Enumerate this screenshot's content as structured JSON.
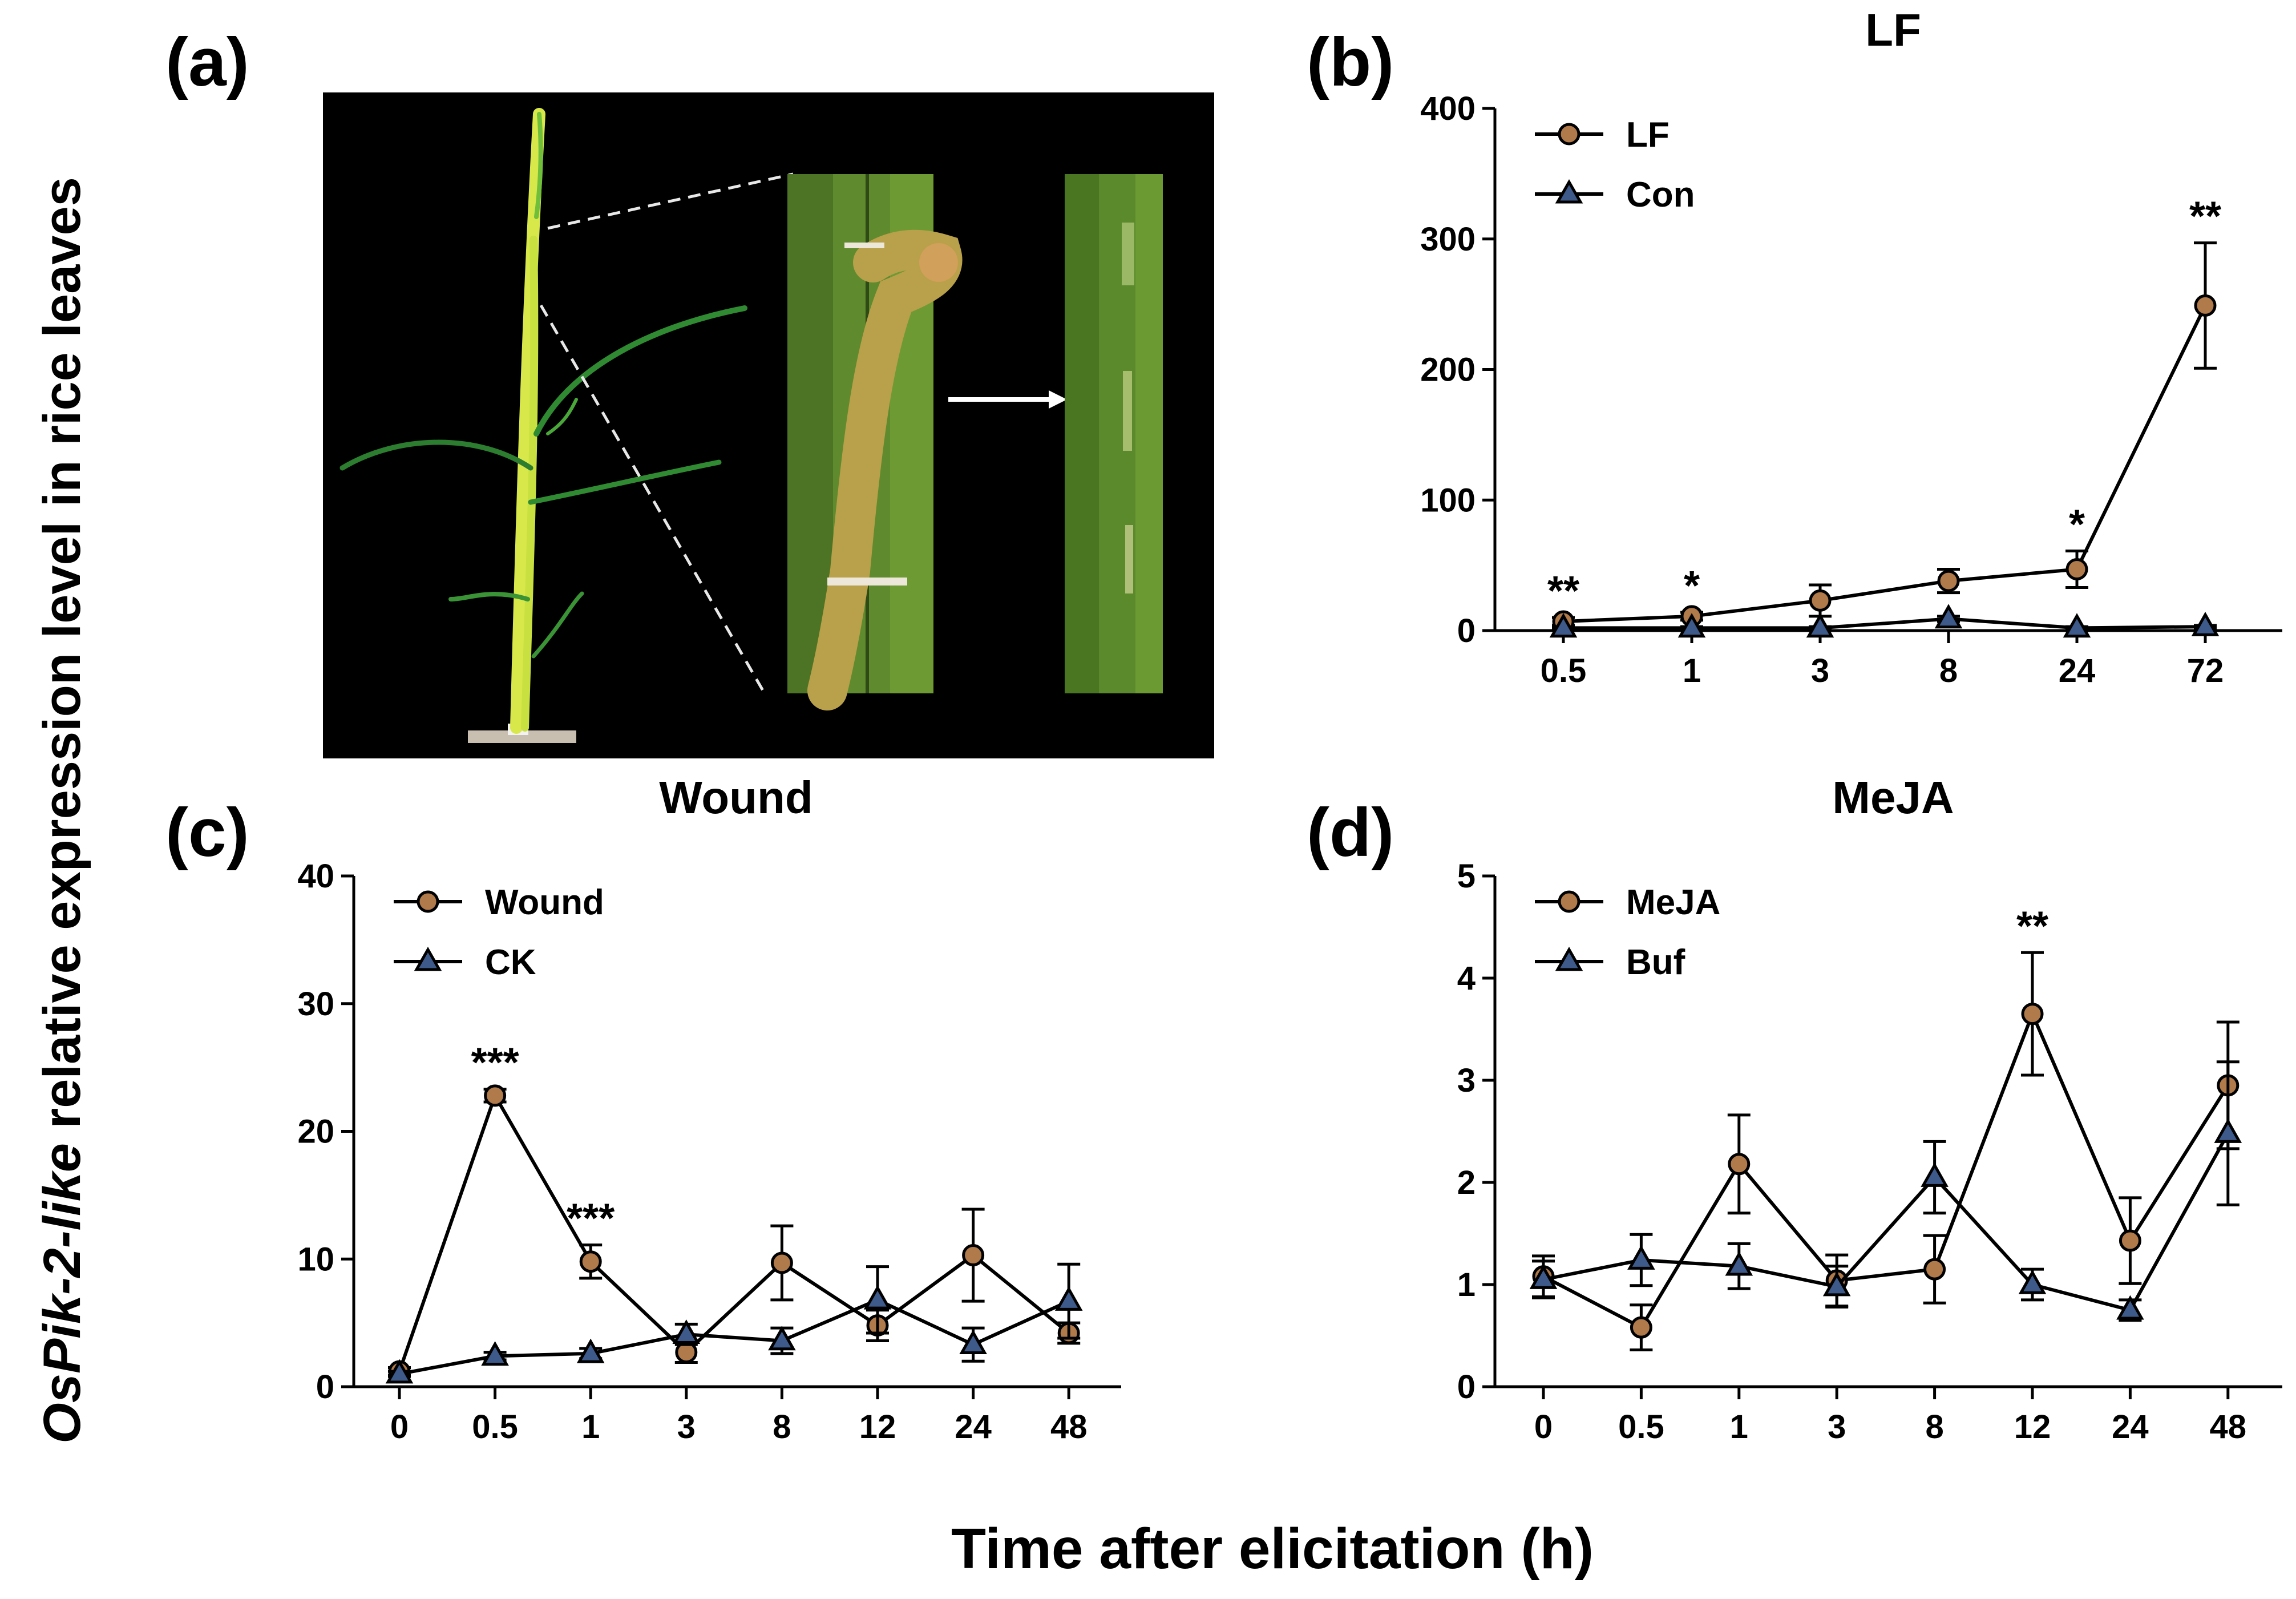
{
  "panels": {
    "a": "(a)",
    "b": "(b)",
    "c": "(c)",
    "d": "(d)"
  },
  "y_title": {
    "italic_part": "OsPik-2-like",
    "rest": " relative expression level in rice leaves"
  },
  "x_title": "Time after elicitation (h)",
  "colors": {
    "treatment_marker": "#b07a4a",
    "control_marker": "#3d5a8a",
    "line": "#000000"
  },
  "chart_data": [
    {
      "id": "b",
      "type": "line",
      "title": "LF",
      "categories": [
        "0.5",
        "1",
        "3",
        "8",
        "24",
        "72"
      ],
      "ylim": [
        0,
        400
      ],
      "yticks": [
        0,
        100,
        200,
        300,
        400
      ],
      "legend_position": "top-left",
      "series": [
        {
          "name": "LF",
          "marker": "circle",
          "values": [
            7,
            11,
            23,
            38,
            47,
            249
          ],
          "errors": [
            3,
            3,
            12,
            9,
            14,
            48
          ],
          "sig": [
            "**",
            "*",
            "",
            "",
            "*",
            "**"
          ]
        },
        {
          "name": "Con",
          "marker": "triangle",
          "values": [
            2,
            2,
            2,
            9,
            2,
            3
          ],
          "errors": [
            1,
            1,
            1,
            2,
            1,
            1
          ]
        }
      ]
    },
    {
      "id": "c",
      "type": "line",
      "title": "Wound",
      "categories": [
        "0",
        "0.5",
        "1",
        "3",
        "8",
        "12",
        "24",
        "48"
      ],
      "ylim": [
        0,
        40
      ],
      "yticks": [
        0,
        10,
        20,
        30,
        40
      ],
      "legend_position": "top-left",
      "series": [
        {
          "name": "Wound",
          "marker": "circle",
          "values": [
            1.2,
            22.8,
            9.8,
            2.7,
            9.7,
            4.8,
            10.3,
            4.2
          ],
          "errors": [
            0.3,
            0.5,
            1.3,
            0.8,
            2.9,
            1.2,
            3.6,
            0.8
          ],
          "sig": [
            "",
            "***",
            "***",
            "",
            "",
            "",
            "",
            ""
          ]
        },
        {
          "name": "CK",
          "marker": "triangle",
          "values": [
            1.0,
            2.4,
            2.6,
            4.1,
            3.6,
            6.8,
            3.3,
            6.7
          ],
          "errors": [
            0.2,
            0.3,
            0.4,
            0.8,
            1.0,
            2.6,
            1.3,
            2.9
          ]
        }
      ]
    },
    {
      "id": "d",
      "type": "line",
      "title": "MeJA",
      "categories": [
        "0",
        "0.5",
        "1",
        "3",
        "8",
        "12",
        "24",
        "48"
      ],
      "ylim": [
        0,
        5
      ],
      "yticks": [
        0,
        1,
        2,
        3,
        4,
        5
      ],
      "legend_position": "top-left",
      "series": [
        {
          "name": "MeJA",
          "marker": "circle",
          "values": [
            1.08,
            0.58,
            2.18,
            1.04,
            1.15,
            3.65,
            1.43,
            2.95
          ],
          "errors": [
            0.2,
            0.22,
            0.48,
            0.25,
            0.33,
            0.6,
            0.42,
            0.62
          ],
          "sig": [
            "",
            "",
            "",
            "",
            "",
            "**",
            "",
            ""
          ]
        },
        {
          "name": "Buf",
          "marker": "triangle",
          "values": [
            1.05,
            1.24,
            1.18,
            0.98,
            2.05,
            1.0,
            0.75,
            2.48
          ],
          "errors": [
            0.18,
            0.25,
            0.22,
            0.2,
            0.35,
            0.15,
            0.1,
            0.7
          ]
        }
      ]
    }
  ]
}
